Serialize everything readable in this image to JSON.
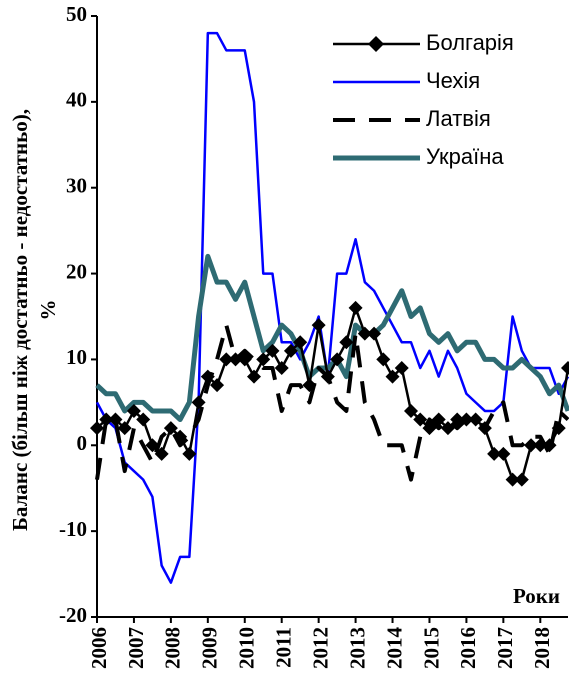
{
  "chart_data": {
    "type": "line",
    "y_label": [
      "Баланс (більш ніж достатньо - недостатньо),",
      "%"
    ],
    "x_label": "Роки",
    "x": [
      2006,
      2006.25,
      2006.5,
      2006.75,
      2007,
      2007.25,
      2007.5,
      2007.75,
      2008,
      2008.25,
      2008.5,
      2008.75,
      2009,
      2009.25,
      2009.5,
      2009.75,
      2010,
      2010.25,
      2010.5,
      2010.75,
      2011,
      2011.25,
      2011.5,
      2011.75,
      2012,
      2012.25,
      2012.5,
      2012.75,
      2013,
      2013.25,
      2013.5,
      2013.75,
      2014,
      2014.25,
      2014.5,
      2014.75,
      2015,
      2015.25,
      2015.5,
      2015.75,
      2016,
      2016.25,
      2016.5,
      2016.75,
      2017,
      2017.25,
      2017.5,
      2017.75,
      2018,
      2018.25,
      2018.5,
      2018.75
    ],
    "series": [
      {
        "name": "Чехія",
        "color": "#0000ff",
        "style": "solid",
        "marker": "none",
        "values": [
          5,
          3,
          2,
          -2,
          -3,
          -4,
          -6,
          -14,
          -16,
          -13,
          -13,
          5,
          48,
          48,
          46,
          46,
          46,
          40,
          20,
          20,
          12,
          12,
          10,
          12,
          15,
          8,
          20,
          20,
          24,
          19,
          18,
          16,
          14,
          12,
          12,
          9,
          11,
          8,
          11,
          9,
          6,
          5,
          4,
          4,
          5,
          15,
          11,
          9,
          9,
          9,
          6,
          8
        ]
      },
      {
        "name": "Україна",
        "color": "#2e6b73",
        "style": "thick",
        "marker": "none",
        "values": [
          7,
          6,
          6,
          4,
          5,
          5,
          4,
          4,
          4,
          3,
          5,
          15,
          22,
          19,
          19,
          17,
          19,
          15,
          11,
          12,
          14,
          13,
          11,
          8,
          9,
          9,
          10,
          8,
          14,
          13,
          13,
          14,
          16,
          18,
          15,
          16,
          13,
          12,
          13,
          11,
          12,
          12,
          10,
          10,
          9,
          9,
          10,
          9,
          8,
          6,
          7,
          4
        ]
      },
      {
        "name": "Болгарія",
        "color": "#000000",
        "style": "solid",
        "marker": "diamond",
        "values": [
          2,
          3,
          3,
          2,
          4,
          3,
          0,
          -1,
          2,
          1,
          -1,
          5,
          8,
          7,
          10,
          10,
          10,
          8,
          10,
          11,
          9,
          11,
          12,
          7,
          14,
          8,
          10,
          12,
          16,
          13,
          13,
          10,
          8,
          9,
          4,
          3,
          2,
          3,
          2,
          3,
          3,
          3,
          2,
          -1,
          -1,
          -4,
          -4,
          0,
          0,
          0,
          2,
          9
        ]
      },
      {
        "name": "Латвія",
        "color": "#000000",
        "style": "dashed",
        "marker": "none",
        "values": [
          -4,
          3,
          3,
          -3,
          2,
          0,
          -2,
          1,
          2,
          0,
          1,
          3,
          7,
          10,
          14,
          10,
          11,
          10,
          9,
          9,
          4,
          7,
          7,
          5,
          9,
          8,
          5,
          4,
          13,
          5,
          3,
          0,
          0,
          0,
          -4,
          1,
          3,
          2,
          3,
          2,
          3,
          3,
          2,
          4,
          5,
          0,
          0,
          1,
          1,
          -1,
          4,
          3
        ]
      }
    ],
    "legend_order": [
      2,
      0,
      3,
      1
    ],
    "xlim": [
      2006,
      2018.75
    ],
    "xticks": [
      2006,
      2007,
      2008,
      2009,
      2010,
      2011,
      2012,
      2013,
      2014,
      2015,
      2016,
      2017,
      2018
    ],
    "ylim": [
      -20,
      50
    ],
    "yticks": [
      -20,
      -10,
      0,
      10,
      20,
      30,
      40,
      50
    ],
    "legend": "upper right",
    "grid": false
  }
}
